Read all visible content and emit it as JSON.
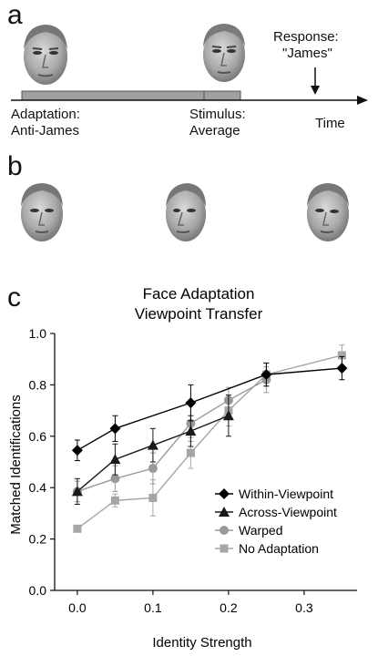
{
  "panel_a": {
    "letter": "a",
    "response": {
      "line1": "Response:",
      "line2": "\"James\""
    },
    "adaptation": {
      "line1": "Adaptation:",
      "line2": "Anti-James"
    },
    "stimulus": {
      "line1": "Stimulus:",
      "line2": "Average"
    },
    "time_label": "Time"
  },
  "panel_b": {
    "letter": "b"
  },
  "panel_c": {
    "letter": "c",
    "colors": {
      "within": "#000000",
      "across": "#1a1a1a",
      "warped": "#999999",
      "noadapt": "#a6a6a6"
    }
  },
  "chart_data": {
    "type": "line",
    "title": "Face Adaptation Viewpoint Transfer",
    "title_lines": [
      "Face Adaptation",
      "Viewpoint Transfer"
    ],
    "xlabel": "Identity Strength",
    "ylabel": "Matched Identifications",
    "xlim": [
      -0.03,
      0.37
    ],
    "ylim": [
      0.0,
      1.0
    ],
    "xticks": [
      0.0,
      0.1,
      0.2,
      0.3
    ],
    "xtick_labels": [
      "0.0",
      "0.1",
      "0.2",
      "0.3"
    ],
    "yticks": [
      0.0,
      0.2,
      0.4,
      0.6,
      0.8,
      1.0
    ],
    "ytick_labels": [
      "0.0",
      "0.2",
      "0.4",
      "0.6",
      "0.8",
      "1.0"
    ],
    "legend_position": "lower-right",
    "series": [
      {
        "name": "Within-Viewpoint",
        "marker": "diamond",
        "x": [
          0.0,
          0.05,
          0.15,
          0.25,
          0.35
        ],
        "y": [
          0.545,
          0.63,
          0.73,
          0.84,
          0.865
        ],
        "err": [
          0.04,
          0.05,
          0.07,
          0.045,
          0.045
        ]
      },
      {
        "name": "Across-Viewpoint",
        "marker": "triangle",
        "x": [
          0.0,
          0.05,
          0.1,
          0.15,
          0.2
        ],
        "y": [
          0.385,
          0.51,
          0.565,
          0.62,
          0.68
        ],
        "err": [
          0.05,
          0.06,
          0.065,
          0.06,
          0.08
        ]
      },
      {
        "name": "Warped",
        "marker": "circle",
        "x": [
          0.0,
          0.05,
          0.1,
          0.15,
          0.2,
          0.25
        ],
        "y": [
          0.385,
          0.435,
          0.475,
          0.65,
          0.74,
          0.82
        ],
        "err": [
          0.04,
          0.05,
          0.06,
          0.07,
          0.05,
          0.05
        ]
      },
      {
        "name": "No Adaptation",
        "marker": "square",
        "x": [
          0.0,
          0.05,
          0.1,
          0.15,
          0.2,
          0.25,
          0.35
        ],
        "y": [
          0.24,
          0.35,
          0.36,
          0.535,
          0.7,
          0.84,
          0.915
        ],
        "err": [
          0.0,
          0.025,
          0.07,
          0.06,
          0.06,
          0.045,
          0.04
        ]
      }
    ]
  }
}
